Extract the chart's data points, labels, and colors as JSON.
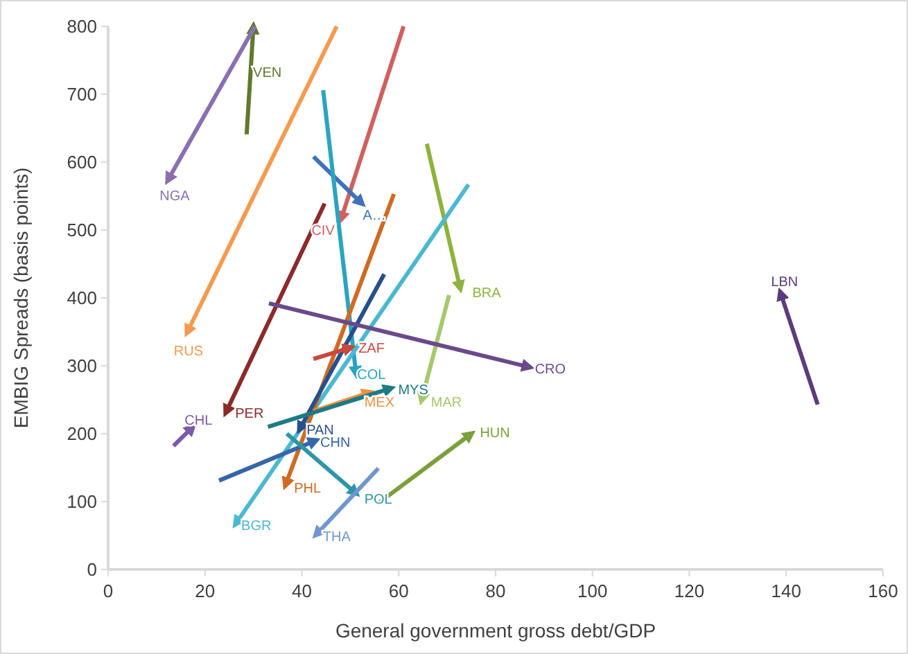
{
  "chart_data": {
    "type": "line",
    "xlabel": "General government gross debt/GDP",
    "ylabel": "EMBIG  Spreads  (basis points)",
    "xlim": [
      0,
      160
    ],
    "xticks": [
      0,
      20,
      40,
      60,
      80,
      100,
      120,
      140,
      160
    ],
    "ylim": [
      0,
      800
    ],
    "yticks": [
      0,
      100,
      200,
      300,
      400,
      500,
      600,
      700,
      800
    ],
    "grid": false,
    "legend": false,
    "series": [
      {
        "name": "VEN",
        "color": "#5f7a2c",
        "x": [
          28.6,
          30
        ],
        "values": [
          641,
          800
        ]
      },
      {
        "name": "NGA",
        "color": "#8a6fb0",
        "x": [
          30.3,
          12.3
        ],
        "values": [
          800,
          573
        ]
      },
      {
        "name": "RUS",
        "color": "#f59a4f",
        "x": [
          47.2,
          16.3
        ],
        "values": [
          800,
          349
        ]
      },
      {
        "name": "CIV",
        "color": "#d0605f",
        "x": [
          61,
          48.1
        ],
        "values": [
          800,
          516
        ]
      },
      {
        "name": "A…",
        "color": "#3f72b8",
        "x": [
          42.4,
          52.4
        ],
        "values": [
          608,
          539
        ]
      },
      {
        "name": "COL",
        "color": "#2aa4c0",
        "x": [
          44.4,
          51.2
        ],
        "values": [
          706,
          288
        ]
      },
      {
        "name": "BRA",
        "color": "#8db33c",
        "x": [
          65.8,
          72.7
        ],
        "values": [
          627,
          414
        ]
      },
      {
        "name": "MAR",
        "color": "#a6c96a",
        "x": [
          70.4,
          64.7
        ],
        "values": [
          404,
          249
        ]
      },
      {
        "name": "BGR",
        "color": "#4bb8d0",
        "x": [
          74.4,
          26.3
        ],
        "values": [
          567,
          67
        ]
      },
      {
        "name": "PHL",
        "color": "#d06a22",
        "x": [
          59,
          36.6
        ],
        "values": [
          553,
          124
        ]
      },
      {
        "name": "PAN",
        "color": "#27508a",
        "x": [
          57,
          39.5
        ],
        "values": [
          435,
          206
        ]
      },
      {
        "name": "PER",
        "color": "#8c2a2a",
        "x": [
          44.7,
          24.3
        ],
        "values": [
          539,
          231
        ]
      },
      {
        "name": "CRO",
        "color": "#6a4a8a",
        "x": [
          33.2,
          87
        ],
        "values": [
          392,
          298
        ]
      },
      {
        "name": "ZAF",
        "color": "#c8483e",
        "x": [
          42.4,
          50.1
        ],
        "values": [
          310,
          327
        ]
      },
      {
        "name": "MEX",
        "color": "#f09040",
        "x": [
          42.4,
          54
        ],
        "values": [
          233,
          261
        ]
      },
      {
        "name": "MYS",
        "color": "#1f7a86",
        "x": [
          33,
          58.4
        ],
        "values": [
          210,
          267
        ]
      },
      {
        "name": "CHN",
        "color": "#3566a8",
        "x": [
          22.9,
          42.9
        ],
        "values": [
          131,
          190
        ]
      },
      {
        "name": "POL",
        "color": "#2c96a8",
        "x": [
          36.9,
          51.2
        ],
        "values": [
          200,
          112
        ]
      },
      {
        "name": "THA",
        "color": "#6f97cf",
        "x": [
          55.8,
          42.9
        ],
        "values": [
          149,
          51
        ]
      },
      {
        "name": "HUN",
        "color": "#7aa03a",
        "x": [
          55.5,
          75
        ],
        "values": [
          96,
          200
        ]
      },
      {
        "name": "CHL",
        "color": "#7b5aa6",
        "x": [
          13.5,
          17.5
        ],
        "values": [
          182,
          210
        ]
      },
      {
        "name": "LBN",
        "color": "#5a3c7e",
        "x": [
          146.5,
          138.8
        ],
        "values": [
          243,
          408
        ]
      }
    ]
  }
}
